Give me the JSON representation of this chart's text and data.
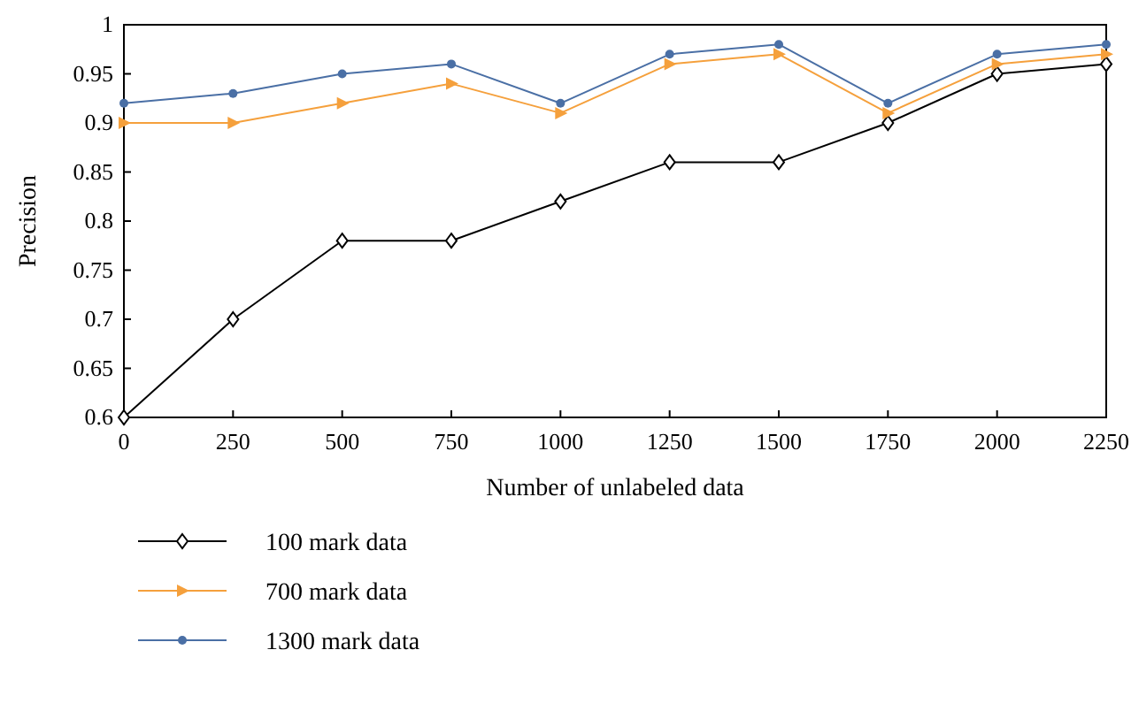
{
  "chart_data": {
    "type": "line",
    "xlabel": "Number of unlabeled data",
    "ylabel": "Precision",
    "x": [
      0,
      250,
      500,
      750,
      1000,
      1250,
      1500,
      1750,
      2000,
      2250
    ],
    "xlim": [
      0,
      2250
    ],
    "xticks": [
      0,
      250,
      500,
      750,
      1000,
      1250,
      1500,
      1750,
      2000,
      2250
    ],
    "ylim": [
      0.6,
      1
    ],
    "yticks": [
      0.6,
      0.65,
      0.7,
      0.75,
      0.8,
      0.85,
      0.9,
      0.95,
      1
    ],
    "grid": false,
    "legend": "bottom",
    "series": [
      {
        "name": "100 mark data",
        "color": "#000000",
        "marker": "diamond",
        "values": [
          0.6,
          0.7,
          0.78,
          0.78,
          0.82,
          0.86,
          0.86,
          0.9,
          0.95,
          0.96
        ]
      },
      {
        "name": "700 mark data",
        "color": "#f5a03c",
        "marker": "triangle",
        "values": [
          0.9,
          0.9,
          0.92,
          0.94,
          0.91,
          0.96,
          0.97,
          0.91,
          0.96,
          0.97
        ]
      },
      {
        "name": "1300 mark data",
        "color": "#4a6fa5",
        "marker": "circle",
        "values": [
          0.92,
          0.93,
          0.95,
          0.96,
          0.92,
          0.97,
          0.98,
          0.92,
          0.97,
          0.98
        ]
      }
    ]
  }
}
